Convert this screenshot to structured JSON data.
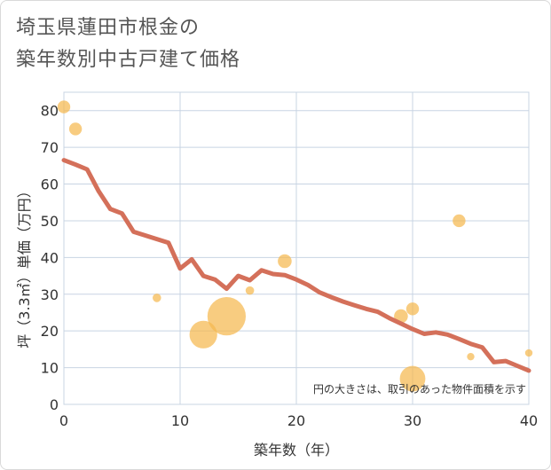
{
  "title_line1": "埼玉県蓮田市根金の",
  "title_line2": "築年数別中古戸建て価格",
  "chart_data": {
    "type": "scatter",
    "xlabel": "築年数（年）",
    "ylabel": "坪（3.3㎡）単価（万円）",
    "xlim": [
      0,
      40
    ],
    "ylim": [
      0,
      85
    ],
    "xticks": [
      "0",
      "10",
      "20",
      "30",
      "40"
    ],
    "yticks": [
      "0",
      "10",
      "20",
      "30",
      "40",
      "50",
      "60",
      "70",
      "80"
    ],
    "grid": true,
    "note": "円の大きさは、取引のあった物件面積を示す",
    "colors": {
      "bubble": "#f5b94f",
      "line": "#d4705a",
      "grid": "#c8d4e3"
    },
    "bubbles": [
      {
        "x": 0,
        "y": 81,
        "size": 1.2
      },
      {
        "x": 1,
        "y": 75,
        "size": 1.2
      },
      {
        "x": 8,
        "y": 29,
        "size": 0.8
      },
      {
        "x": 12,
        "y": 19,
        "size": 2.6
      },
      {
        "x": 14,
        "y": 24,
        "size": 3.6
      },
      {
        "x": 16,
        "y": 31,
        "size": 0.8
      },
      {
        "x": 19,
        "y": 39,
        "size": 1.3
      },
      {
        "x": 29,
        "y": 24,
        "size": 1.3
      },
      {
        "x": 30,
        "y": 26,
        "size": 1.2
      },
      {
        "x": 30,
        "y": 7,
        "size": 2.4
      },
      {
        "x": 34,
        "y": 50,
        "size": 1.2
      },
      {
        "x": 35,
        "y": 13,
        "size": 0.7
      },
      {
        "x": 40,
        "y": 14,
        "size": 0.7
      }
    ],
    "trend": {
      "x": [
        0,
        1,
        2,
        3,
        4,
        5,
        6,
        7,
        8,
        9,
        10,
        11,
        12,
        13,
        14,
        15,
        16,
        17,
        18,
        19,
        20,
        21,
        22,
        23,
        24,
        25,
        26,
        27,
        28,
        29,
        30,
        31,
        32,
        33,
        34,
        35,
        36,
        37,
        38,
        39,
        40
      ],
      "y": [
        66.5,
        65.3,
        64,
        58,
        53.2,
        52,
        47,
        46,
        45,
        44,
        37,
        39.5,
        35,
        34,
        31.5,
        35,
        33.8,
        36.5,
        35.5,
        35.2,
        34,
        32.5,
        30.5,
        29.2,
        28,
        27,
        26,
        25.2,
        23.5,
        22,
        20.5,
        19.2,
        19.6,
        19,
        17.8,
        16.5,
        15.5,
        11.5,
        11.8,
        10.5,
        9.2
      ]
    }
  }
}
